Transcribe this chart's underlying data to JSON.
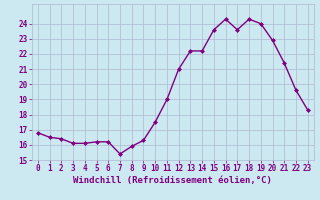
{
  "hours": [
    0,
    1,
    2,
    3,
    4,
    5,
    6,
    7,
    8,
    9,
    10,
    11,
    12,
    13,
    14,
    15,
    16,
    17,
    18,
    19,
    20,
    21,
    22,
    23
  ],
  "windchill": [
    16.8,
    16.5,
    16.4,
    16.1,
    16.1,
    16.2,
    16.2,
    15.4,
    15.9,
    16.3,
    17.5,
    19.0,
    21.0,
    22.2,
    22.2,
    23.6,
    24.3,
    23.6,
    24.3,
    24.0,
    22.9,
    21.4,
    19.6,
    18.3
  ],
  "line_color": "#800080",
  "marker": "D",
  "marker_size": 2.0,
  "bg_color": "#cce8f0",
  "grid_color": "#b0b8d0",
  "xlabel": "Windchill (Refroidissement éolien,°C)",
  "ylim": [
    15,
    25
  ],
  "xlim_left": -0.5,
  "xlim_right": 23.5,
  "yticks": [
    15,
    16,
    17,
    18,
    19,
    20,
    21,
    22,
    23,
    24
  ],
  "xticks": [
    0,
    1,
    2,
    3,
    4,
    5,
    6,
    7,
    8,
    9,
    10,
    11,
    12,
    13,
    14,
    15,
    16,
    17,
    18,
    19,
    20,
    21,
    22,
    23
  ],
  "tick_label_color": "#800080",
  "tick_label_fontsize": 5.5,
  "xlabel_fontsize": 6.5,
  "linewidth": 1.0
}
